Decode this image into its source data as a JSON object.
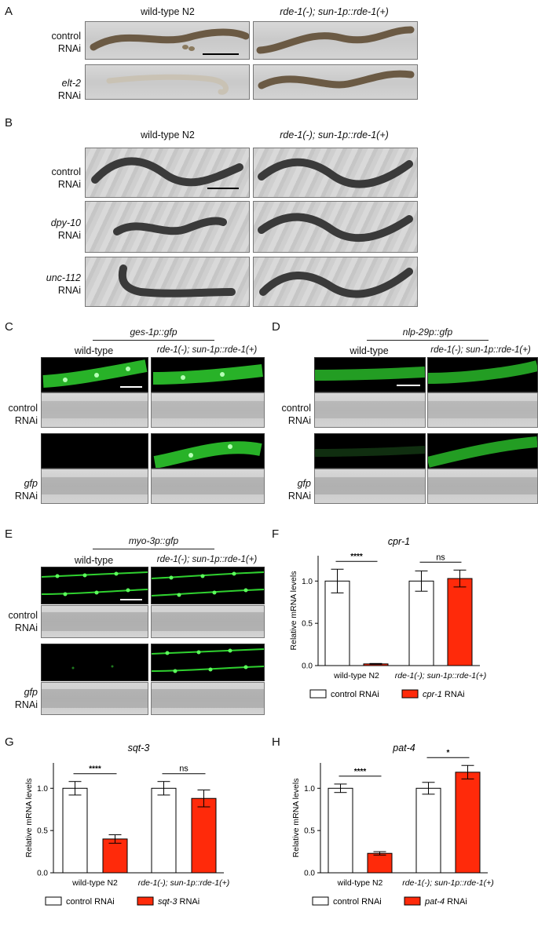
{
  "panels": {
    "A": {
      "letter": "A",
      "col1": "wild-type N2",
      "col2": "rde-1(-); sun-1p::rde-1(+)",
      "rows": [
        {
          "l1": "control",
          "l2": "RNAi",
          "italic1": false
        },
        {
          "l1": "elt-2",
          "l2": "RNAi",
          "italic1": true
        }
      ]
    },
    "B": {
      "letter": "B",
      "col1": "wild-type N2",
      "col2": "rde-1(-); sun-1p::rde-1(+)",
      "rows": [
        {
          "l1": "control",
          "l2": "RNAi"
        },
        {
          "l1": "dpy-10",
          "l2": "RNAi"
        },
        {
          "l1": "unc-112",
          "l2": "RNAi"
        }
      ]
    },
    "C": {
      "letter": "C",
      "reporter": "ges-1p::gfp",
      "col1": "wild-type",
      "col2": "rde-1(-); sun-1p::rde-1(+)",
      "rows": [
        {
          "l1": "control",
          "l2": "RNAi"
        },
        {
          "l1": "gfp",
          "l2": "RNAi"
        }
      ]
    },
    "D": {
      "letter": "D",
      "reporter": "nlp-29p::gfp",
      "col1": "wild-type",
      "col2": "rde-1(-); sun-1p::rde-1(+)",
      "rows": [
        {
          "l1": "control",
          "l2": "RNAi"
        },
        {
          "l1": "gfp",
          "l2": "RNAi"
        }
      ]
    },
    "E": {
      "letter": "E",
      "reporter": "myo-3p::gfp",
      "col1": "wild-type",
      "col2": "rde-1(-); sun-1p::rde-1(+)",
      "rows": [
        {
          "l1": "control",
          "l2": "RNAi"
        },
        {
          "l1": "gfp",
          "l2": "RNAi"
        }
      ]
    },
    "F": {
      "letter": "F"
    },
    "G": {
      "letter": "G"
    },
    "H": {
      "letter": "H"
    }
  },
  "colors": {
    "gfp_green": "#2fd12f",
    "rnai_red": "#ff2a0a",
    "control_white": "#ffffff"
  },
  "chart_data": [
    {
      "panel": "F",
      "type": "bar",
      "title": "cpr-1",
      "ylabel": "Relative mRNA levels",
      "ylim": [
        0,
        1.3
      ],
      "yticks": [
        "0.0",
        "0.5",
        "1.0"
      ],
      "categories": [
        "wild-type N2",
        "rde-1(-); sun-1p::rde-1(+)"
      ],
      "series": [
        {
          "name": "control RNAi",
          "values": [
            1.0,
            1.0
          ],
          "errors": [
            0.14,
            0.12
          ]
        },
        {
          "name": "cpr-1 RNAi",
          "values": [
            0.02,
            1.03
          ],
          "errors": [
            0.005,
            0.1
          ]
        }
      ],
      "significance": [
        "****",
        "ns"
      ],
      "legend": [
        "control RNAi",
        "cpr-1",
        "RNAi"
      ]
    },
    {
      "panel": "G",
      "type": "bar",
      "title": "sqt-3",
      "ylabel": "Relative mRNA levels",
      "ylim": [
        0,
        1.3
      ],
      "yticks": [
        "0.0",
        "0.5",
        "1.0"
      ],
      "categories": [
        "wild-type N2",
        "rde-1(-); sun-1p::rde-1(+)"
      ],
      "series": [
        {
          "name": "control RNAi",
          "values": [
            1.0,
            1.0
          ],
          "errors": [
            0.08,
            0.08
          ]
        },
        {
          "name": "sqt-3 RNAi",
          "values": [
            0.4,
            0.88
          ],
          "errors": [
            0.05,
            0.1
          ]
        }
      ],
      "significance": [
        "****",
        "ns"
      ],
      "legend": [
        "control RNAi",
        "sqt-3",
        "RNAi"
      ]
    },
    {
      "panel": "H",
      "type": "bar",
      "title": "pat-4",
      "ylabel": "Relative mRNA levels",
      "ylim": [
        0,
        1.3
      ],
      "yticks": [
        "0.0",
        "0.5",
        "1.0"
      ],
      "categories": [
        "wild-type N2",
        "rde-1(-); sun-1p::rde-1(+)"
      ],
      "series": [
        {
          "name": "control RNAi",
          "values": [
            1.0,
            1.0
          ],
          "errors": [
            0.05,
            0.07
          ]
        },
        {
          "name": "pat-4 RNAi",
          "values": [
            0.23,
            1.19
          ],
          "errors": [
            0.02,
            0.08
          ]
        }
      ],
      "significance": [
        "****",
        "*"
      ],
      "legend": [
        "control RNAi",
        "pat-4",
        "RNAi"
      ]
    }
  ]
}
